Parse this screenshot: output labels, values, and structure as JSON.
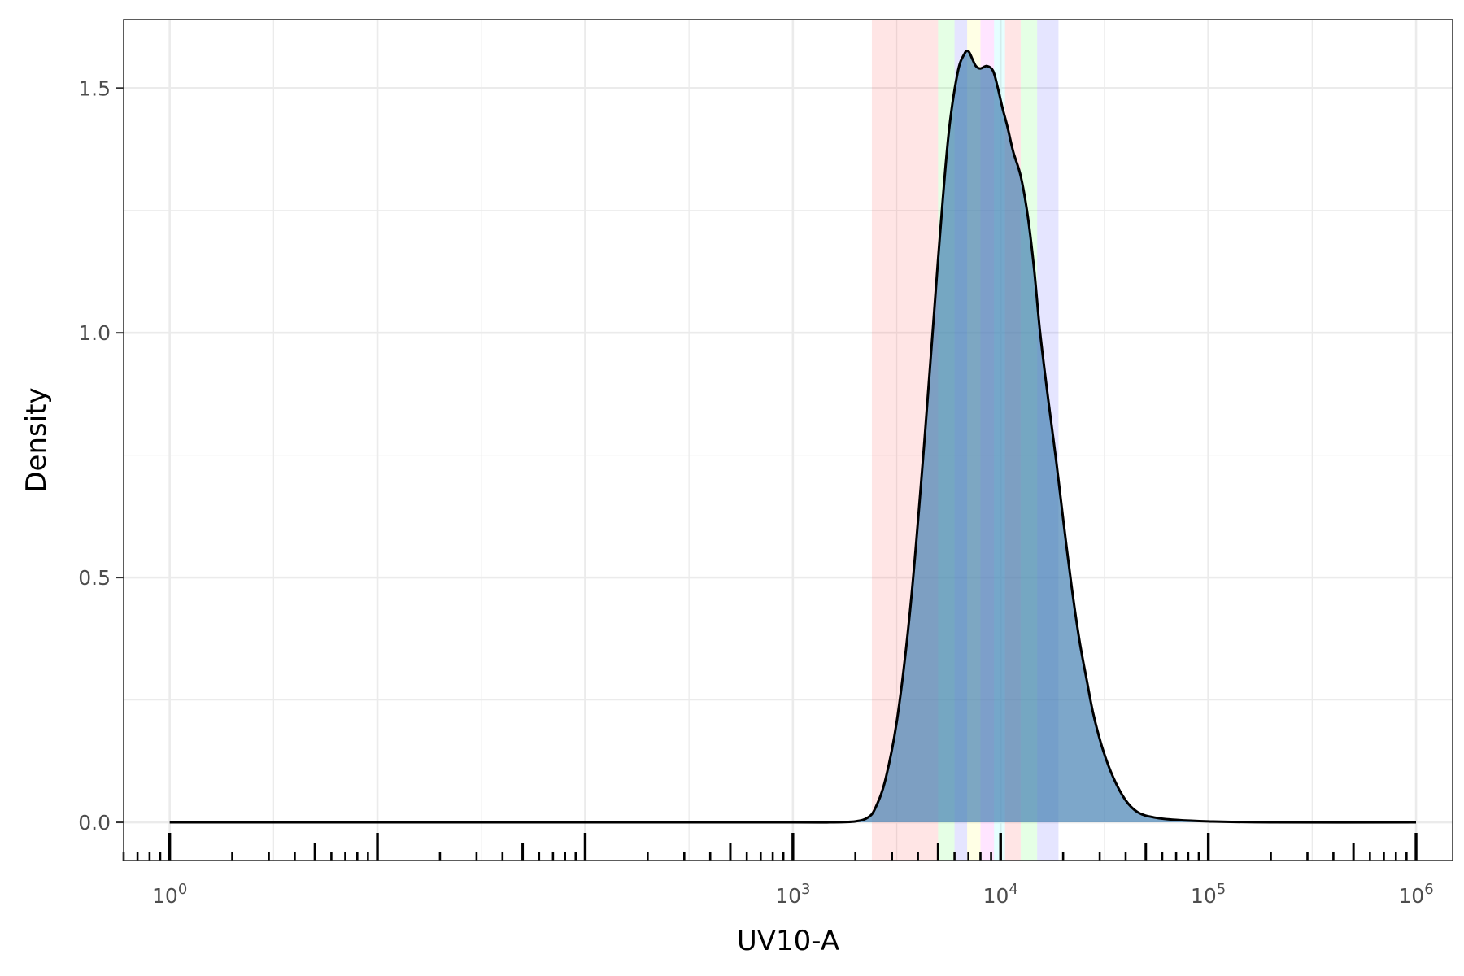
{
  "chart_data": {
    "type": "area",
    "title": "",
    "xlabel": "UV10-A",
    "ylabel": "Density",
    "x_scale": "log10",
    "xlim": [
      0.6,
      1500000
    ],
    "ylim": [
      -0.078,
      1.64
    ],
    "x_ticks": [
      {
        "value": 1,
        "base": "10",
        "exp": "0"
      },
      {
        "value": 1000,
        "base": "10",
        "exp": "3"
      },
      {
        "value": 10000,
        "base": "10",
        "exp": "4"
      },
      {
        "value": 100000,
        "base": "10",
        "exp": "5"
      },
      {
        "value": 1000000,
        "base": "10",
        "exp": "6"
      }
    ],
    "y_ticks": [
      {
        "value": 0.0,
        "label": "0.0"
      },
      {
        "value": 0.5,
        "label": "0.5"
      },
      {
        "value": 1.0,
        "label": "1.0"
      },
      {
        "value": 1.5,
        "label": "1.5"
      }
    ],
    "grid": true,
    "colors": {
      "density_fill": "#4682b4",
      "density_line": "#000000",
      "grid": "#ebebeb",
      "panel_border": "#333333",
      "rug": "#000000"
    },
    "gate_bands": [
      {
        "x0": 2400,
        "x1": 5000,
        "color": "#ff0000"
      },
      {
        "x0": 5000,
        "x1": 6000,
        "color": "#00ff00"
      },
      {
        "x0": 6000,
        "x1": 6900,
        "color": "#0000ff"
      },
      {
        "x0": 6900,
        "x1": 8000,
        "color": "#ffff00"
      },
      {
        "x0": 8000,
        "x1": 9300,
        "color": "#ff00ff"
      },
      {
        "x0": 9300,
        "x1": 10500,
        "color": "#00ffff"
      },
      {
        "x0": 10500,
        "x1": 12500,
        "color": "#ff0000"
      },
      {
        "x0": 12500,
        "x1": 15000,
        "color": "#00ff00"
      },
      {
        "x0": 15000,
        "x1": 19000,
        "color": "#0000ff"
      }
    ],
    "series": [
      {
        "x": [
          1,
          10,
          100,
          1000,
          1500,
          2000,
          2300,
          2500,
          2800,
          3200,
          3700,
          4300,
          5000,
          5600,
          6200,
          6700,
          7000,
          7300,
          7600,
          8000,
          8600,
          9200,
          9700,
          10200,
          10800,
          11500,
          12500,
          13500,
          14500,
          15500,
          17000,
          18500,
          20000,
          22000,
          24000,
          26000,
          28000,
          31000,
          35000,
          40000,
          46000,
          55000,
          70000,
          100000,
          200000,
          1000000
        ],
        "y": [
          0.0,
          0.0,
          0.0,
          0.0,
          0.0,
          0.002,
          0.01,
          0.03,
          0.09,
          0.22,
          0.45,
          0.78,
          1.15,
          1.4,
          1.53,
          1.57,
          1.575,
          1.56,
          1.545,
          1.54,
          1.545,
          1.535,
          1.5,
          1.46,
          1.42,
          1.37,
          1.32,
          1.24,
          1.13,
          1.0,
          0.86,
          0.74,
          0.62,
          0.48,
          0.37,
          0.29,
          0.22,
          0.15,
          0.09,
          0.045,
          0.02,
          0.01,
          0.005,
          0.002,
          0.0,
          0.0
        ]
      }
    ]
  }
}
